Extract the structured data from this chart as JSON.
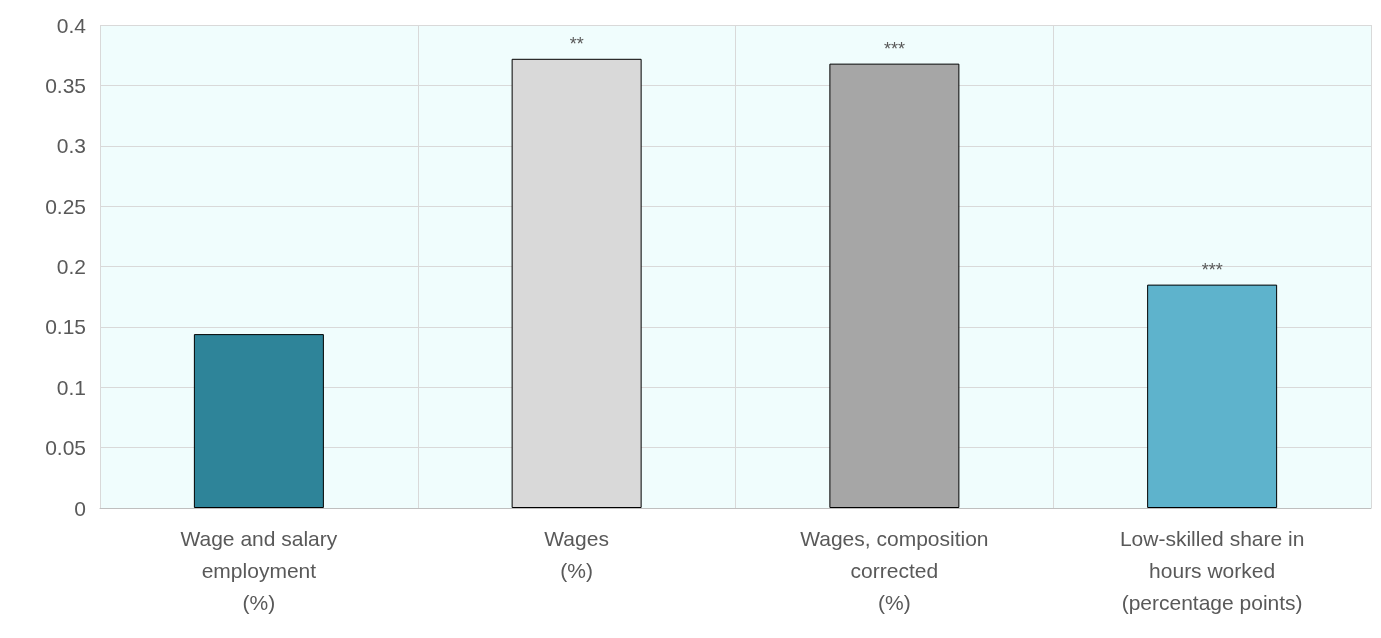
{
  "chart_data": {
    "type": "bar",
    "categories": [
      "Wage and salary\nemployment\n(%)",
      "Wages\n(%)",
      "Wages, composition\ncorrected\n(%)",
      "Low-skilled share in\nhours worked\n(percentage points)"
    ],
    "values": [
      0.144,
      0.372,
      0.368,
      0.185
    ],
    "colors": [
      "#2e8499",
      "#d9d9d9",
      "#a6a6a6",
      "#5eb3cc"
    ],
    "ylim": [
      0,
      0.4
    ],
    "yticks": [
      0,
      0.05,
      0.1,
      0.15,
      0.2,
      0.25,
      0.3,
      0.35,
      0.4
    ],
    "grid": true,
    "annotations": [
      {
        "text": "**",
        "x": "Wages\n(%)",
        "y": 0.372
      },
      {
        "text": "***",
        "x": "Wages, composition\ncorrected\n(%)",
        "y": 0.368
      },
      {
        "text": "***",
        "x": "Low-skilled share in\nhours worked\n(percentage points)",
        "y": 0.185
      }
    ]
  }
}
